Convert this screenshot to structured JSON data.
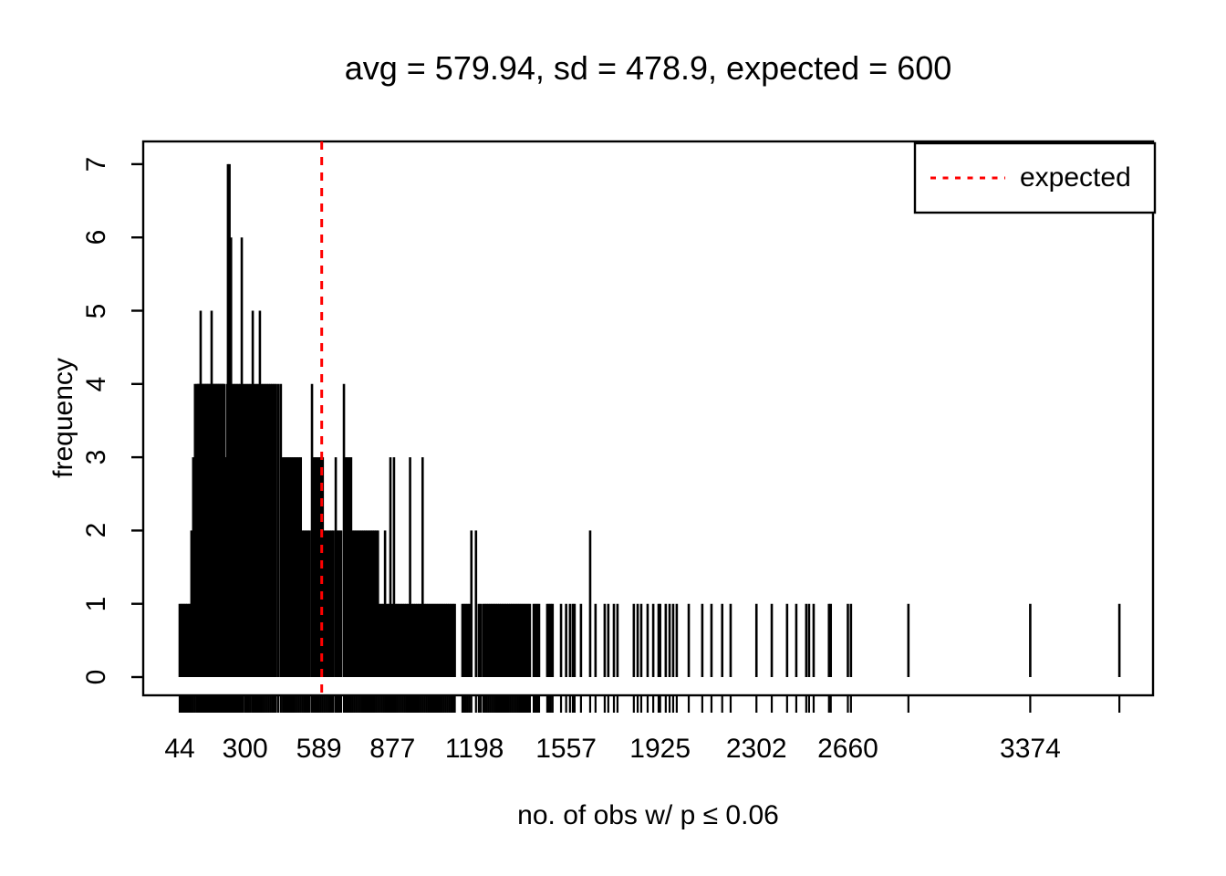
{
  "chart_data": {
    "type": "bar",
    "subtype": "spike-frequency-plot (R plot(table), type h)",
    "title": "avg = 579.94, sd = 478.9, expected = 600",
    "xlabel": "no. of obs w/ p ≤ 0.06",
    "ylabel": "frequency",
    "x_tick_labels": [
      44,
      300,
      589,
      877,
      1198,
      1557,
      1925,
      2302,
      2660,
      3374
    ],
    "y_tick_labels": [
      0,
      1,
      2,
      3,
      4,
      5,
      6,
      7
    ],
    "xlim": [
      44,
      3723
    ],
    "ylim": [
      0,
      7
    ],
    "grid": false,
    "expected_value": 600,
    "legend": {
      "position": "top-right",
      "entries": [
        {
          "label": "expected",
          "line_style": "dashed",
          "color": "#FF0000"
        }
      ]
    },
    "colors": {
      "spikes": "#000000",
      "expected_line": "#FF0000",
      "axis": "#000000",
      "text": "#000000",
      "background": "#FFFFFF"
    },
    "spikes": [
      [
        44,
        1
      ],
      [
        50,
        1
      ],
      [
        56,
        1
      ],
      [
        62,
        1
      ],
      [
        68,
        1
      ],
      [
        74,
        1
      ],
      [
        80,
        1
      ],
      [
        86,
        1
      ],
      [
        90,
        2
      ],
      [
        97,
        3
      ],
      [
        104,
        4
      ],
      [
        111,
        4
      ],
      [
        115,
        4
      ],
      [
        119,
        4
      ],
      [
        122,
        4
      ],
      [
        126,
        5
      ],
      [
        130,
        4
      ],
      [
        133,
        4
      ],
      [
        137,
        4
      ],
      [
        141,
        4
      ],
      [
        144,
        4
      ],
      [
        148,
        4
      ],
      [
        151,
        4
      ],
      [
        155,
        4
      ],
      [
        158,
        4
      ],
      [
        162,
        4
      ],
      [
        166,
        4
      ],
      [
        169,
        5
      ],
      [
        173,
        4
      ],
      [
        176,
        4
      ],
      [
        180,
        4
      ],
      [
        184,
        4
      ],
      [
        187,
        4
      ],
      [
        191,
        4
      ],
      [
        194,
        4
      ],
      [
        198,
        4
      ],
      [
        201,
        4
      ],
      [
        205,
        4
      ],
      [
        208,
        4
      ],
      [
        212,
        4
      ],
      [
        215,
        4
      ],
      [
        218,
        4
      ],
      [
        222,
        3
      ],
      [
        226,
        3
      ],
      [
        229,
        4
      ],
      [
        233,
        7
      ],
      [
        239,
        7
      ],
      [
        245,
        6
      ],
      [
        251,
        4
      ],
      [
        257,
        4
      ],
      [
        263,
        4
      ],
      [
        269,
        4
      ],
      [
        275,
        4
      ],
      [
        281,
        4
      ],
      [
        287,
        6
      ],
      [
        293,
        4
      ],
      [
        301,
        4
      ],
      [
        308,
        4
      ],
      [
        315,
        4
      ],
      [
        322,
        4
      ],
      [
        330,
        5
      ],
      [
        337,
        4
      ],
      [
        344,
        4
      ],
      [
        351,
        4
      ],
      [
        358,
        5
      ],
      [
        365,
        4
      ],
      [
        372,
        4
      ],
      [
        379,
        4
      ],
      [
        386,
        4
      ],
      [
        393,
        4
      ],
      [
        400,
        4
      ],
      [
        407,
        4
      ],
      [
        414,
        4
      ],
      [
        421,
        4
      ],
      [
        430,
        4
      ],
      [
        440,
        4
      ],
      [
        448,
        3
      ],
      [
        455,
        3
      ],
      [
        462,
        3
      ],
      [
        469,
        3
      ],
      [
        476,
        3
      ],
      [
        483,
        3
      ],
      [
        490,
        3
      ],
      [
        497,
        3
      ],
      [
        504,
        3
      ],
      [
        511,
        3
      ],
      [
        518,
        3
      ],
      [
        525,
        2
      ],
      [
        532,
        2
      ],
      [
        539,
        2
      ],
      [
        546,
        2
      ],
      [
        553,
        2
      ],
      [
        562,
        4
      ],
      [
        569,
        3
      ],
      [
        576,
        3
      ],
      [
        583,
        3
      ],
      [
        590,
        3
      ],
      [
        597,
        3
      ],
      [
        604,
        3
      ],
      [
        611,
        2
      ],
      [
        618,
        2
      ],
      [
        625,
        2
      ],
      [
        632,
        2
      ],
      [
        639,
        2
      ],
      [
        646,
        2
      ],
      [
        655,
        3
      ],
      [
        662,
        2
      ],
      [
        669,
        2
      ],
      [
        676,
        2
      ],
      [
        687,
        4
      ],
      [
        694,
        3
      ],
      [
        701,
        3
      ],
      [
        708,
        3
      ],
      [
        715,
        3
      ],
      [
        722,
        2
      ],
      [
        729,
        2
      ],
      [
        736,
        2
      ],
      [
        743,
        2
      ],
      [
        750,
        2
      ],
      [
        757,
        2
      ],
      [
        764,
        2
      ],
      [
        771,
        2
      ],
      [
        778,
        2
      ],
      [
        785,
        2
      ],
      [
        792,
        2
      ],
      [
        799,
        2
      ],
      [
        806,
        2
      ],
      [
        813,
        2
      ],
      [
        820,
        2
      ],
      [
        827,
        1
      ],
      [
        834,
        1
      ],
      [
        841,
        1
      ],
      [
        848,
        2
      ],
      [
        855,
        1
      ],
      [
        862,
        1
      ],
      [
        869,
        3
      ],
      [
        876,
        1
      ],
      [
        883,
        3
      ],
      [
        890,
        1
      ],
      [
        897,
        1
      ],
      [
        904,
        1
      ],
      [
        911,
        1
      ],
      [
        918,
        1
      ],
      [
        925,
        1
      ],
      [
        932,
        1
      ],
      [
        939,
        1
      ],
      [
        946,
        3
      ],
      [
        953,
        1
      ],
      [
        960,
        1
      ],
      [
        967,
        1
      ],
      [
        974,
        1
      ],
      [
        981,
        1
      ],
      [
        988,
        1
      ],
      [
        995,
        3
      ],
      [
        1002,
        1
      ],
      [
        1009,
        1
      ],
      [
        1016,
        1
      ],
      [
        1023,
        1
      ],
      [
        1030,
        1
      ],
      [
        1037,
        1
      ],
      [
        1044,
        1
      ],
      [
        1051,
        1
      ],
      [
        1058,
        1
      ],
      [
        1065,
        1
      ],
      [
        1072,
        1
      ],
      [
        1079,
        1
      ],
      [
        1086,
        1
      ],
      [
        1093,
        1
      ],
      [
        1100,
        1
      ],
      [
        1107,
        1
      ],
      [
        1114,
        1
      ],
      [
        1121,
        1
      ],
      [
        1151,
        1
      ],
      [
        1158,
        1
      ],
      [
        1165,
        1
      ],
      [
        1172,
        1
      ],
      [
        1179,
        1
      ],
      [
        1186,
        2
      ],
      [
        1204,
        2
      ],
      [
        1215,
        1
      ],
      [
        1223,
        1
      ],
      [
        1233,
        1
      ],
      [
        1240,
        1
      ],
      [
        1247,
        1
      ],
      [
        1254,
        1
      ],
      [
        1261,
        1
      ],
      [
        1268,
        1
      ],
      [
        1275,
        1
      ],
      [
        1282,
        1
      ],
      [
        1289,
        1
      ],
      [
        1296,
        1
      ],
      [
        1303,
        1
      ],
      [
        1310,
        1
      ],
      [
        1317,
        1
      ],
      [
        1324,
        1
      ],
      [
        1331,
        1
      ],
      [
        1338,
        1
      ],
      [
        1345,
        1
      ],
      [
        1352,
        1
      ],
      [
        1359,
        1
      ],
      [
        1366,
        1
      ],
      [
        1373,
        1
      ],
      [
        1380,
        1
      ],
      [
        1387,
        1
      ],
      [
        1394,
        1
      ],
      [
        1401,
        1
      ],
      [
        1408,
        1
      ],
      [
        1415,
        1
      ],
      [
        1430,
        1
      ],
      [
        1437,
        1
      ],
      [
        1444,
        1
      ],
      [
        1451,
        1
      ],
      [
        1483,
        1
      ],
      [
        1490,
        1
      ],
      [
        1497,
        1
      ],
      [
        1504,
        1
      ],
      [
        1537,
        1
      ],
      [
        1557,
        1
      ],
      [
        1572,
        1
      ],
      [
        1583,
        1
      ],
      [
        1590,
        1
      ],
      [
        1615,
        1
      ],
      [
        1651,
        2
      ],
      [
        1672,
        1
      ],
      [
        1708,
        1
      ],
      [
        1722,
        1
      ],
      [
        1744,
        1
      ],
      [
        1758,
        1
      ],
      [
        1822,
        1
      ],
      [
        1837,
        1
      ],
      [
        1851,
        1
      ],
      [
        1876,
        1
      ],
      [
        1898,
        1
      ],
      [
        1919,
        1
      ],
      [
        1925,
        1
      ],
      [
        1947,
        1
      ],
      [
        1962,
        1
      ],
      [
        1976,
        1
      ],
      [
        1990,
        1
      ],
      [
        2037,
        1
      ],
      [
        2090,
        1
      ],
      [
        2126,
        1
      ],
      [
        2168,
        1
      ],
      [
        2201,
        1
      ],
      [
        2302,
        1
      ],
      [
        2362,
        1
      ],
      [
        2422,
        1
      ],
      [
        2458,
        1
      ],
      [
        2497,
        1
      ],
      [
        2508,
        1
      ],
      [
        2526,
        1
      ],
      [
        2586,
        1
      ],
      [
        2593,
        1
      ],
      [
        2660,
        1
      ],
      [
        2672,
        1
      ],
      [
        2897,
        1
      ],
      [
        3374,
        1
      ],
      [
        3723,
        1
      ]
    ]
  }
}
